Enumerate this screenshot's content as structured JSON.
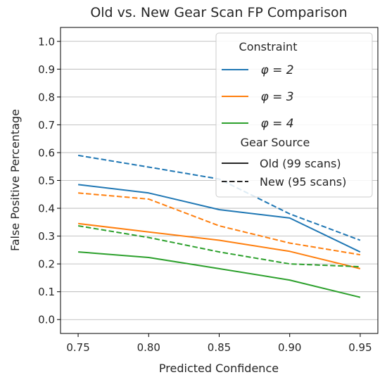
{
  "chart_data": {
    "type": "line",
    "title": "Old vs. New Gear Scan FP Comparison",
    "xlabel": "Predicted Confidence",
    "ylabel": "False Positive Percentage",
    "x": [
      0.75,
      0.8,
      0.85,
      0.9,
      0.95
    ],
    "x_ticks": [
      "0.75",
      "0.80",
      "0.85",
      "0.90",
      "0.95"
    ],
    "y_ticks": [
      "0.0",
      "0.1",
      "0.2",
      "0.3",
      "0.4",
      "0.5",
      "0.6",
      "0.7",
      "0.8",
      "0.9",
      "1.0"
    ],
    "xlim": [
      0.7375,
      0.9625
    ],
    "ylim": [
      -0.05,
      1.05
    ],
    "grid": "horizontal",
    "legend_position": "top-right",
    "series": [
      {
        "constraint": "φ = 2",
        "source": "Old (99 scans)",
        "color": "#1f77b4",
        "dash": "solid",
        "values": [
          0.485,
          0.455,
          0.395,
          0.365,
          0.243
        ]
      },
      {
        "constraint": "φ = 2",
        "source": "New (95 scans)",
        "color": "#1f77b4",
        "dash": "dashed",
        "values": [
          0.59,
          0.548,
          0.505,
          0.38,
          0.285
        ]
      },
      {
        "constraint": "φ = 3",
        "source": "Old (99 scans)",
        "color": "#ff7f0e",
        "dash": "solid",
        "values": [
          0.345,
          0.315,
          0.285,
          0.245,
          0.183
        ]
      },
      {
        "constraint": "φ = 3",
        "source": "New (95 scans)",
        "color": "#ff7f0e",
        "dash": "dashed",
        "values": [
          0.455,
          0.433,
          0.337,
          0.275,
          0.233
        ]
      },
      {
        "constraint": "φ = 4",
        "source": "Old (99 scans)",
        "color": "#2ca02c",
        "dash": "solid",
        "values": [
          0.243,
          0.223,
          0.183,
          0.142,
          0.08
        ]
      },
      {
        "constraint": "φ = 4",
        "source": "New (95 scans)",
        "color": "#2ca02c",
        "dash": "dashed",
        "values": [
          0.337,
          0.295,
          0.243,
          0.2,
          0.19
        ]
      }
    ],
    "legend": {
      "constraint_title": "Constraint",
      "constraint_entries": [
        {
          "label": "φ = 2",
          "color": "#1f77b4"
        },
        {
          "label": "φ = 3",
          "color": "#ff7f0e"
        },
        {
          "label": "φ = 4",
          "color": "#2ca02c"
        }
      ],
      "source_title": "Gear Source",
      "source_entries": [
        {
          "label": "Old (99 scans)",
          "dash": "solid"
        },
        {
          "label": "New (95 scans)",
          "dash": "dashed"
        }
      ]
    }
  }
}
